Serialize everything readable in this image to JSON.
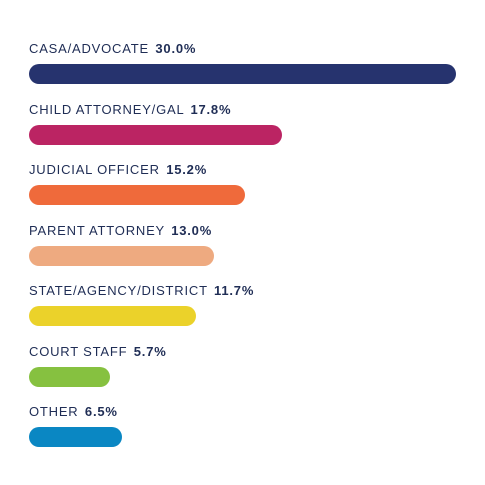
{
  "chart_data": {
    "type": "bar",
    "orientation": "horizontal",
    "title": "",
    "xlabel": "",
    "ylabel": "",
    "xlim": [
      0,
      30.0
    ],
    "categories": [
      "CASA/ADVOCATE",
      "CHILD ATTORNEY/GAL",
      "JUDICIAL OFFICER",
      "PARENT ATTORNEY",
      "STATE/AGENCY/DISTRICT",
      "COURT STAFF",
      "OTHER"
    ],
    "values": [
      30.0,
      17.8,
      15.2,
      13.0,
      11.7,
      5.7,
      6.5
    ],
    "value_labels": [
      "30.0%",
      "17.8%",
      "15.2%",
      "13.0%",
      "11.7%",
      "5.7%",
      "6.5%"
    ],
    "colors": [
      "#26336e",
      "#bb2463",
      "#ef6a3b",
      "#eeaa80",
      "#ebd22a",
      "#86c140",
      "#0a87c3"
    ],
    "grid": false,
    "legend": "none"
  }
}
